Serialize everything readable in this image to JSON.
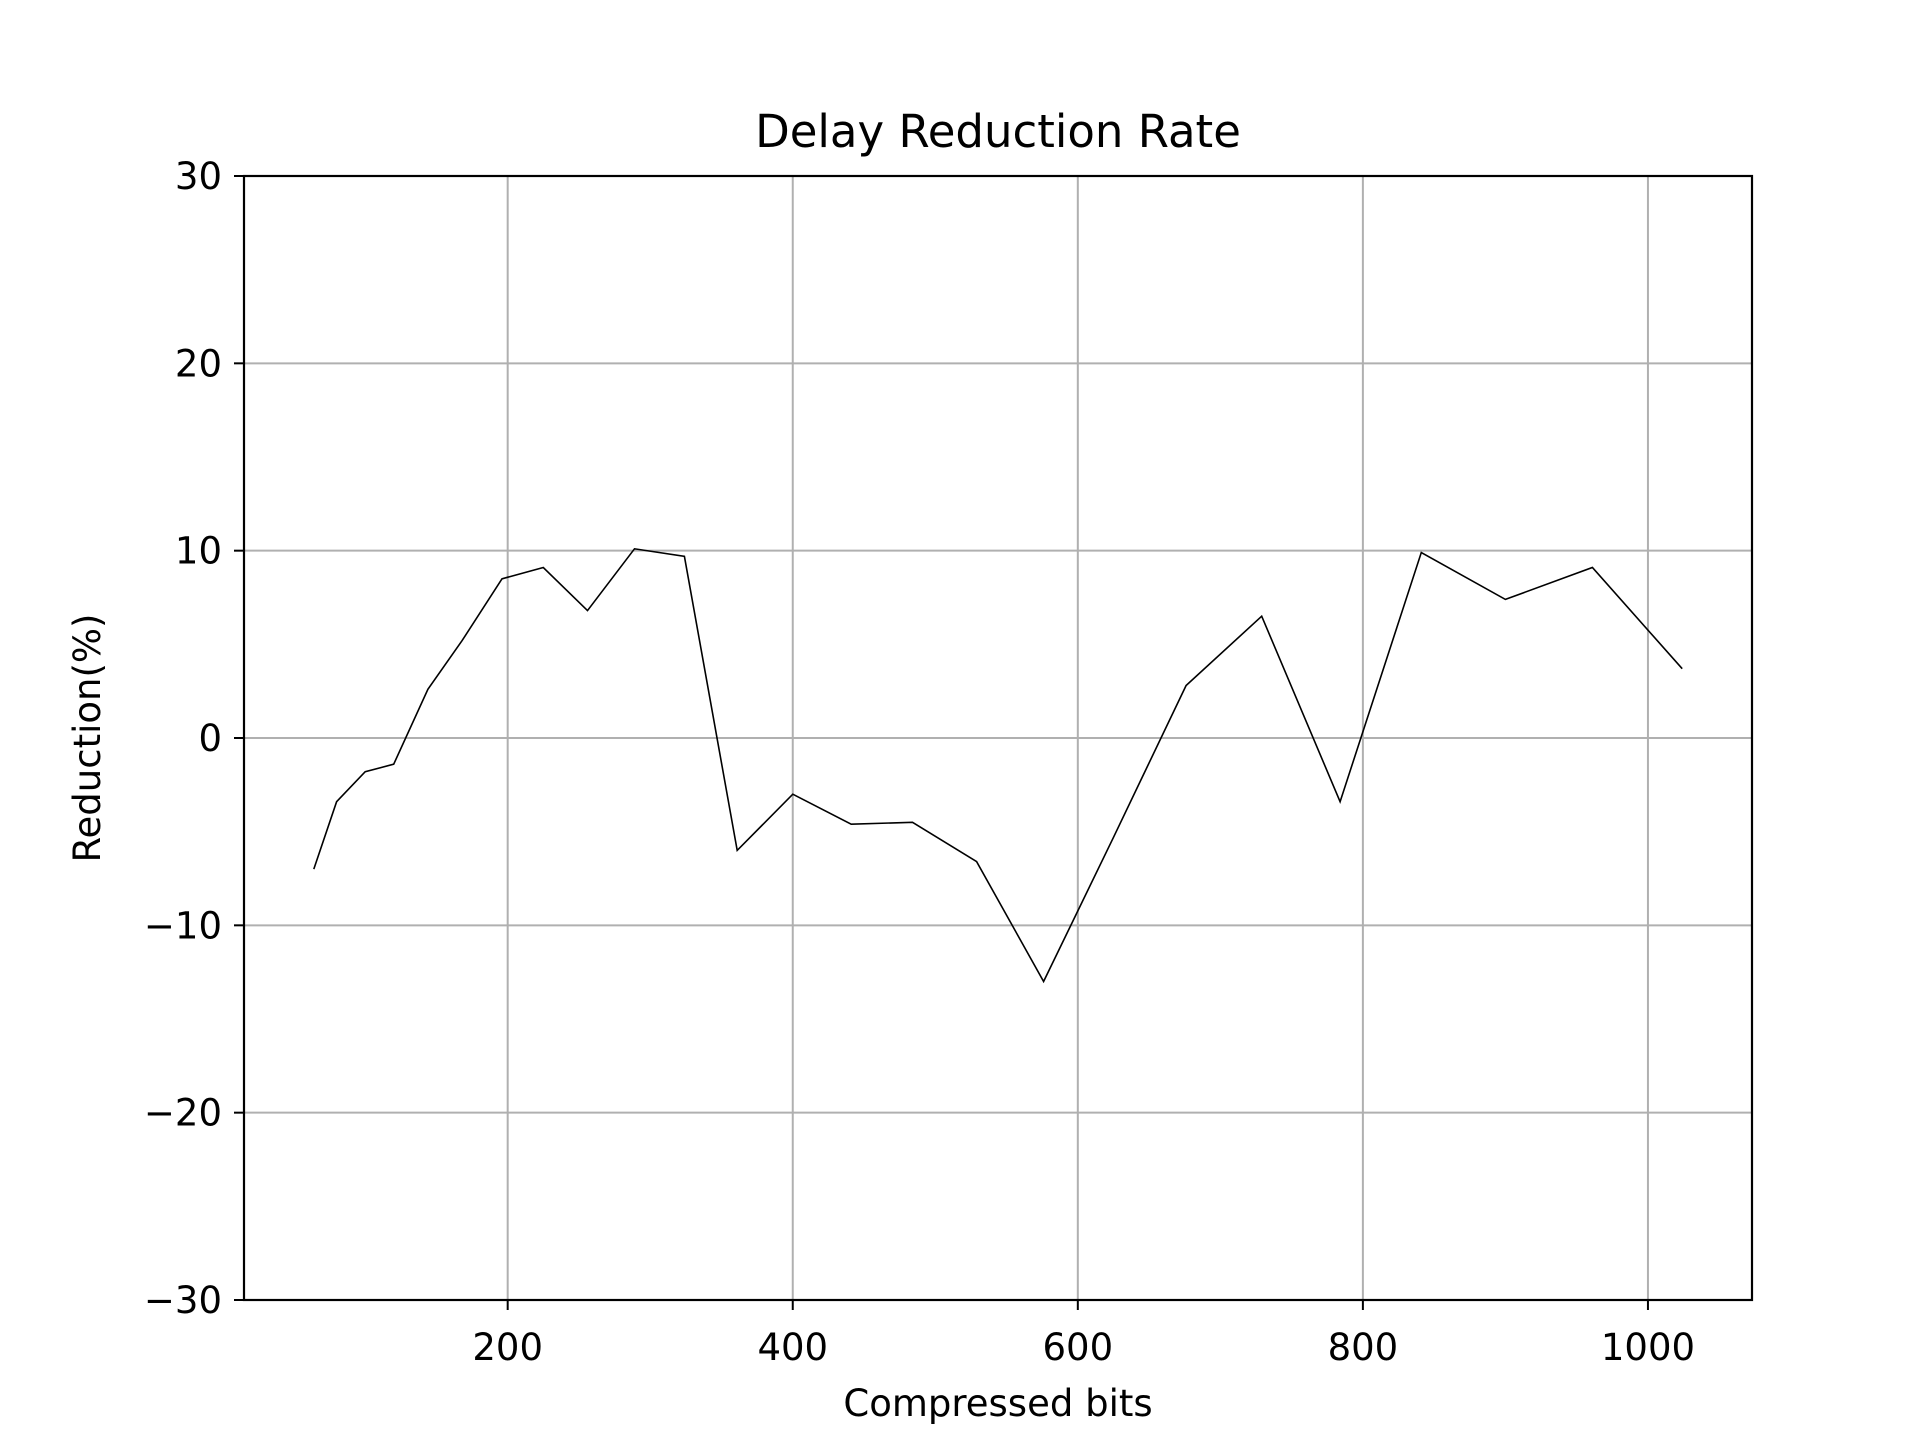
{
  "chart_data": {
    "type": "line",
    "title": "Delay Reduction Rate",
    "xlabel": "Compressed bits",
    "ylabel": "Reduction(%)",
    "xlim": [
      15,
      1073
    ],
    "ylim": [
      -30,
      30
    ],
    "xticks": [
      200,
      400,
      600,
      800,
      1000
    ],
    "xtick_labels": [
      "200",
      "400",
      "600",
      "800",
      "1000"
    ],
    "yticks": [
      -30,
      -20,
      -10,
      0,
      10,
      20,
      30
    ],
    "ytick_labels": [
      "−30",
      "−20",
      "−10",
      "0",
      "10",
      "20",
      "30"
    ],
    "grid": true,
    "line_color": "#000000",
    "grid_color": "#b0b0b0",
    "series": [
      {
        "x": [
          64,
          80,
          100,
          120,
          144,
          168,
          196,
          225,
          256,
          289,
          324,
          361,
          400,
          441,
          484,
          529,
          576,
          625,
          676,
          729,
          784,
          841,
          900,
          961,
          1024
        ],
        "y": [
          -7.0,
          -3.4,
          -1.8,
          -1.4,
          2.6,
          5.2,
          8.5,
          9.1,
          6.8,
          10.1,
          9.7,
          -6.0,
          -3.0,
          -4.6,
          -4.5,
          -6.6,
          -13.0,
          -5.3,
          2.8,
          6.5,
          -3.4,
          9.9,
          7.4,
          9.1,
          3.7
        ]
      }
    ]
  }
}
